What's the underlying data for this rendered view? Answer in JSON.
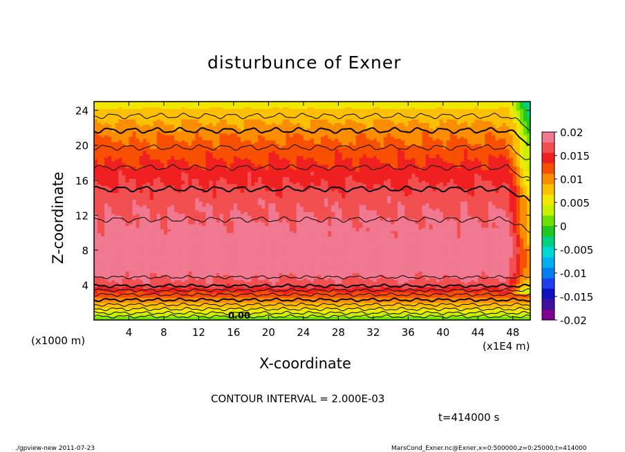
{
  "chart_data": {
    "type": "heatmap",
    "subtype": "filled-contour",
    "title": "disturbunce of Exner",
    "xlabel": "X-coordinate",
    "ylabel": "Z-coordinate",
    "x_unit_left": "(x1000 m)",
    "x_unit_right": "(x1E4 m)",
    "xlim": [
      0,
      50
    ],
    "ylim": [
      0,
      25
    ],
    "x_ticks": [
      4,
      8,
      12,
      16,
      20,
      24,
      28,
      32,
      36,
      40,
      44,
      48
    ],
    "y_ticks": [
      4,
      8,
      12,
      16,
      20,
      24
    ],
    "colorbar": {
      "range": [
        -0.02,
        0.02
      ],
      "tick_labels": [
        "0.02",
        "0.015",
        "0.01",
        "0.005",
        "0",
        "-0.005",
        "-0.01",
        "-0.015",
        "-0.02"
      ],
      "colors": [
        "#f07890",
        "#f25050",
        "#f02020",
        "#f85000",
        "#fc8c00",
        "#fcc000",
        "#f0e800",
        "#c8f000",
        "#70e000",
        "#20c820",
        "#00d080",
        "#00d8d8",
        "#00b0f0",
        "#0080f0",
        "#2040f0",
        "#1010c0",
        "#4010a0",
        "#800090"
      ]
    },
    "profile_z": [
      0,
      1,
      2,
      3,
      3.5,
      4,
      5,
      6,
      7,
      8,
      9,
      10,
      11,
      12,
      13,
      14,
      15,
      16,
      17,
      18,
      19,
      20,
      21,
      22,
      23,
      24,
      24.6
    ],
    "profile_value": [
      0.0,
      0.005,
      0.009,
      0.0125,
      0.0145,
      0.0165,
      0.0182,
      0.0192,
      0.0198,
      0.0198,
      0.0192,
      0.0186,
      0.0182,
      0.0178,
      0.0173,
      0.0167,
      0.016,
      0.0152,
      0.0144,
      0.0136,
      0.0127,
      0.0118,
      0.0108,
      0.0097,
      0.0085,
      0.0072,
      0.006
    ],
    "zero_contour_label": "0.00",
    "contour_interval_text": "CONTOUR INTERVAL = 2.000E-03",
    "time_text": "t=414000 s"
  },
  "footer": {
    "left": "./gpview-new  2011-07-23",
    "right": "MarsCond_Exner.nc@Exner,x=0:500000,z=0:25000,t=414000"
  }
}
